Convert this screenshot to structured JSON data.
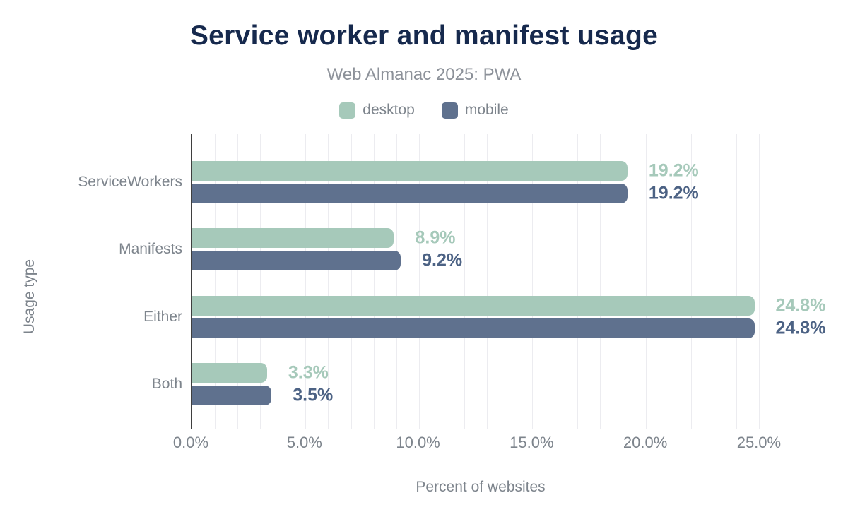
{
  "header": {
    "title": "Service worker and manifest usage",
    "subtitle": "Web Almanac 2025: PWA"
  },
  "legend": {
    "position": "top",
    "items": [
      {
        "label": "desktop",
        "color": "#a6c9ba"
      },
      {
        "label": "mobile",
        "color": "#5f718e"
      }
    ]
  },
  "chart_data": {
    "type": "bar",
    "orientation": "horizontal",
    "title": "Service worker and manifest usage",
    "subtitle": "Web Almanac 2025: PWA",
    "categories": [
      "ServiceWorkers",
      "Manifests",
      "Either",
      "Both"
    ],
    "series": [
      {
        "name": "desktop",
        "color": "#a6c9ba",
        "label_color": "#a6c9ba",
        "values": [
          19.2,
          8.9,
          24.8,
          3.3
        ],
        "labels": [
          "19.2%",
          "8.9%",
          "24.8%",
          "3.3%"
        ]
      },
      {
        "name": "mobile",
        "color": "#5f718e",
        "label_color": "#4c6284",
        "values": [
          19.2,
          9.2,
          24.8,
          3.5
        ],
        "labels": [
          "19.2%",
          "9.2%",
          "24.8%",
          "3.5%"
        ]
      }
    ],
    "xlabel": "Percent of websites",
    "ylabel": "Usage type",
    "xlim": [
      0,
      25.5
    ],
    "grid": true,
    "gridline_step": 1,
    "xticks": [
      {
        "value": 0,
        "label": "0.0%"
      },
      {
        "value": 5,
        "label": "5.0%"
      },
      {
        "value": 10,
        "label": "10.0%"
      },
      {
        "value": 15,
        "label": "15.0%"
      },
      {
        "value": 20,
        "label": "20.0%"
      },
      {
        "value": 25,
        "label": "25.0%"
      }
    ],
    "legend_position": "top"
  },
  "colors": {
    "title": "#16294d",
    "subtitle": "#8c9199",
    "axis_text": "#7d848c",
    "axis_line": "#3f3f3f",
    "gridline": "#ececf0",
    "background": "#ffffff"
  }
}
